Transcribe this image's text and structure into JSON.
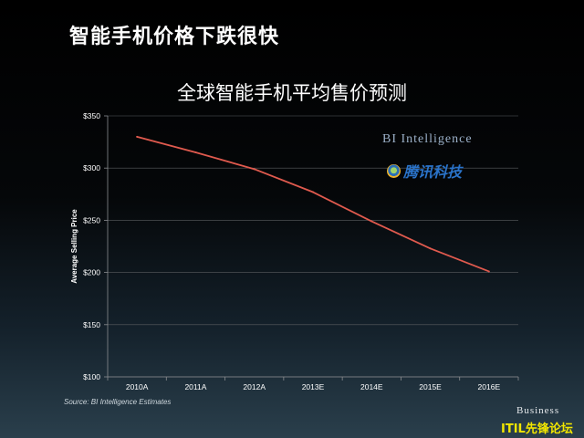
{
  "slide": {
    "title": "智能手机价格下跌很快"
  },
  "logos": {
    "bi_intelligence": "BI Intelligence",
    "tencent_tech": "腾讯科技",
    "business": "Business",
    "watermark": "ITIL先锋论坛"
  },
  "source": "Source: BI Intelligence Estimates",
  "chart_data": {
    "type": "line",
    "title": "全球智能手机平均售价预测",
    "xlabel": "",
    "ylabel": "Average Selling Price",
    "categories": [
      "2010A",
      "2011A",
      "2012A",
      "2013E",
      "2014E",
      "2015E",
      "2016E"
    ],
    "series": [
      {
        "values": [
          330,
          315,
          299,
          277,
          249,
          223,
          201
        ],
        "color": "#e05a4e"
      }
    ],
    "ylim": [
      100,
      350
    ],
    "yticks": [
      100,
      150,
      200,
      250,
      300,
      350
    ],
    "ytick_labels": [
      "$100",
      "$150",
      "$200",
      "$250",
      "$300",
      "$350"
    ],
    "grid": true,
    "legend": "none"
  }
}
